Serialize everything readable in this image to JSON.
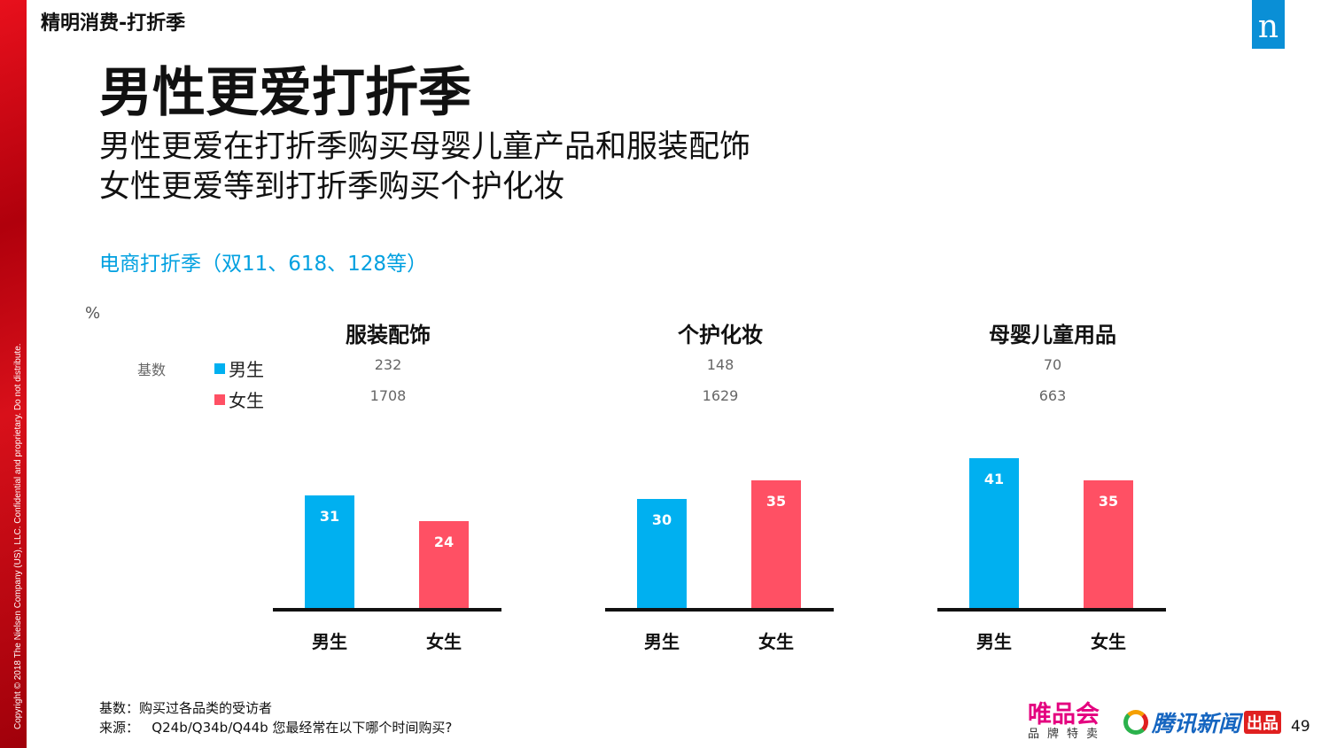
{
  "header": {
    "section": "精明消费-打折季",
    "logo": "n",
    "title": "男性更爱打折季",
    "subtitle_lines": [
      "男性更爱在打折季购买母婴儿童产品和服装配饰",
      "女性更爱等到打折季购买个护化妆"
    ],
    "chart_label": "电商打折季（双11、618、128等）"
  },
  "copyright": "Copyright © 2018 The Nielsen Company (US), LLC. Confidential and proprietary. Do not distribute.",
  "legend": {
    "unit": "%",
    "base_label": "基数",
    "male": "男生",
    "female": "女生",
    "male_color": "#00b0f0",
    "female_color": "#ff5064"
  },
  "chart_data": [
    {
      "type": "bar",
      "title": "服装配饰",
      "categories": [
        "男生",
        "女生"
      ],
      "base": [
        232,
        1708
      ],
      "values": [
        31,
        24
      ]
    },
    {
      "type": "bar",
      "title": "个护化妆",
      "categories": [
        "男生",
        "女生"
      ],
      "base": [
        148,
        1629
      ],
      "values": [
        30,
        35
      ]
    },
    {
      "type": "bar",
      "title": "母婴儿童用品",
      "categories": [
        "男生",
        "女生"
      ],
      "base": [
        70,
        663
      ],
      "values": [
        41,
        35
      ]
    }
  ],
  "footer": {
    "base_note": "基数：购买过各品类的受访者",
    "source_note": "来源：   Q24b/Q34b/Q44b 您最经常在以下哪个时间购买?",
    "vip": "唯品会",
    "vip_sub": "品牌特卖",
    "tencent": "腾讯新闻",
    "tencent_badge": "出品",
    "page": "49"
  }
}
